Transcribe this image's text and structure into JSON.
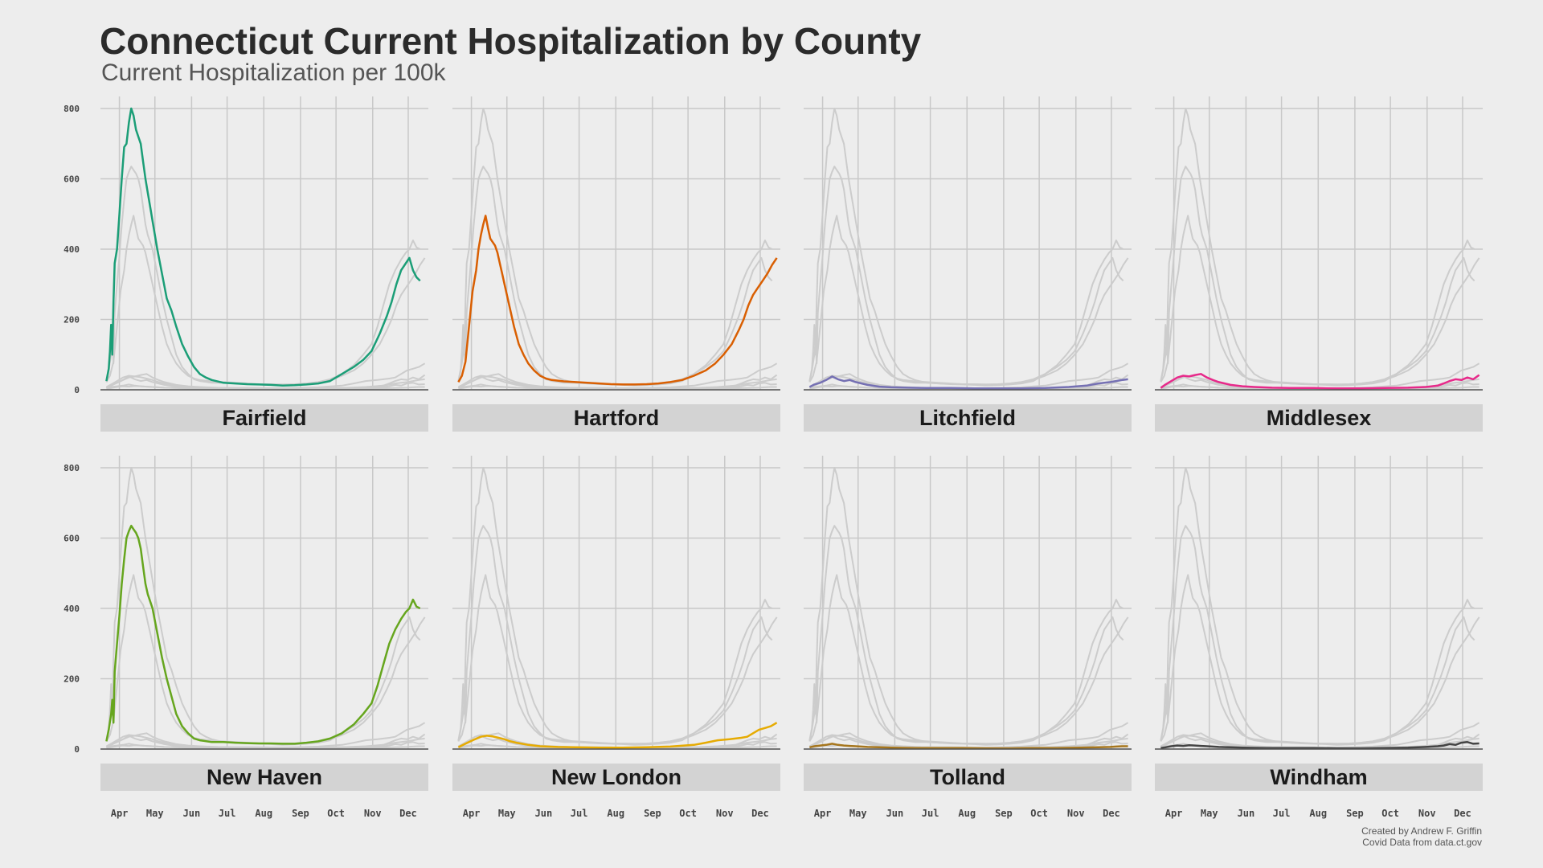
{
  "chart_data": {
    "type": "line",
    "title": "Connecticut Current Hospitalization by County",
    "subtitle": "Current Hospitalization per 100k",
    "caption": [
      "Created by Andrew F. Griffin",
      "Covid Data from data.ct.gov"
    ],
    "xlabel": "",
    "ylabel": "",
    "x_unit": "day of year 2020",
    "xlim": [
      76,
      353
    ],
    "ylim": [
      0,
      800
    ],
    "yticks": [
      0,
      200,
      400,
      600,
      800
    ],
    "ytick_labels": [
      "0",
      "200",
      "400",
      "600",
      "800"
    ],
    "xticks": [
      92,
      122,
      153,
      183,
      214,
      245,
      275,
      306,
      336
    ],
    "xtick_labels": [
      "Apr",
      "May",
      "Jun",
      "Jul",
      "Aug",
      "Sep",
      "Oct",
      "Nov",
      "Dec"
    ],
    "grid": true,
    "background_series_color": "#cccccc",
    "baseline_color": "#555555",
    "series": [
      {
        "name": "Fairfield",
        "color": "#1b9e77",
        "x": [
          81,
          83,
          84,
          85,
          86,
          87,
          88,
          90,
          92,
          94,
          96,
          98,
          100,
          102,
          104,
          106,
          108,
          110,
          112,
          114,
          116,
          118,
          120,
          124,
          128,
          132,
          136,
          140,
          145,
          150,
          155,
          160,
          165,
          170,
          180,
          190,
          200,
          210,
          220,
          230,
          240,
          250,
          260,
          270,
          280,
          290,
          298,
          305,
          312,
          318,
          322,
          326,
          330,
          334,
          337,
          340,
          343,
          346
        ],
        "values": [
          25,
          60,
          110,
          185,
          100,
          250,
          360,
          400,
          500,
          600,
          690,
          700,
          760,
          800,
          780,
          740,
          720,
          700,
          650,
          600,
          560,
          520,
          480,
          400,
          330,
          260,
          225,
          180,
          130,
          95,
          65,
          45,
          35,
          28,
          20,
          18,
          16,
          15,
          14,
          12,
          13,
          15,
          18,
          25,
          45,
          65,
          85,
          110,
          160,
          210,
          250,
          300,
          340,
          360,
          375,
          340,
          320,
          310
        ]
      },
      {
        "name": "Hartford",
        "color": "#d95f02",
        "x": [
          81,
          84,
          87,
          90,
          93,
          96,
          98,
          100,
          102,
          104,
          106,
          108,
          110,
          112,
          114,
          116,
          118,
          120,
          124,
          128,
          132,
          136,
          140,
          145,
          150,
          155,
          160,
          170,
          180,
          190,
          200,
          210,
          220,
          230,
          240,
          250,
          260,
          270,
          280,
          290,
          298,
          305,
          312,
          318,
          322,
          326,
          330,
          334,
          338,
          342,
          346,
          350
        ],
        "values": [
          22,
          40,
          80,
          180,
          280,
          340,
          400,
          440,
          470,
          495,
          460,
          430,
          420,
          410,
          390,
          360,
          330,
          300,
          240,
          180,
          130,
          100,
          75,
          55,
          40,
          32,
          28,
          24,
          22,
          20,
          18,
          16,
          15,
          15,
          16,
          18,
          22,
          28,
          40,
          55,
          75,
          100,
          130,
          170,
          200,
          240,
          270,
          290,
          310,
          330,
          355,
          375
        ]
      },
      {
        "name": "Litchfield",
        "color": "#7570b3",
        "x": [
          81,
          85,
          90,
          95,
          100,
          105,
          110,
          115,
          120,
          130,
          140,
          150,
          165,
          180,
          200,
          220,
          240,
          260,
          280,
          300,
          315,
          325,
          335,
          340,
          345,
          350
        ],
        "values": [
          8,
          15,
          20,
          28,
          38,
          30,
          25,
          28,
          22,
          14,
          9,
          7,
          6,
          5,
          5,
          4,
          4,
          4,
          5,
          8,
          12,
          18,
          22,
          25,
          28,
          30
        ]
      },
      {
        "name": "Middlesex",
        "color": "#e7298a",
        "x": [
          81,
          85,
          90,
          95,
          100,
          105,
          110,
          115,
          120,
          125,
          130,
          135,
          140,
          150,
          160,
          175,
          190,
          210,
          230,
          250,
          270,
          290,
          305,
          315,
          320,
          325,
          330,
          335,
          340,
          345,
          350
        ],
        "values": [
          5,
          15,
          25,
          35,
          40,
          38,
          42,
          45,
          35,
          28,
          22,
          18,
          14,
          10,
          8,
          6,
          5,
          5,
          4,
          4,
          5,
          6,
          8,
          12,
          18,
          25,
          30,
          28,
          35,
          30,
          42
        ]
      },
      {
        "name": "New Haven",
        "color": "#66a61e",
        "x": [
          81,
          83,
          85,
          86,
          87,
          88,
          90,
          92,
          94,
          96,
          98,
          100,
          102,
          104,
          106,
          108,
          110,
          112,
          114,
          116,
          118,
          120,
          124,
          128,
          132,
          136,
          140,
          145,
          150,
          155,
          160,
          170,
          180,
          190,
          200,
          210,
          220,
          230,
          240,
          250,
          260,
          270,
          280,
          290,
          298,
          305,
          310,
          315,
          320,
          325,
          330,
          334,
          337,
          340,
          343,
          346
        ],
        "values": [
          22,
          55,
          100,
          140,
          75,
          220,
          300,
          380,
          470,
          540,
          600,
          620,
          635,
          625,
          615,
          600,
          570,
          520,
          470,
          440,
          420,
          400,
          330,
          260,
          200,
          150,
          100,
          65,
          45,
          30,
          25,
          20,
          20,
          18,
          17,
          16,
          16,
          15,
          15,
          18,
          22,
          30,
          45,
          70,
          100,
          130,
          180,
          240,
          300,
          340,
          370,
          390,
          400,
          425,
          405,
          400
        ]
      },
      {
        "name": "New London",
        "color": "#e6ab02",
        "x": [
          81,
          85,
          90,
          95,
          100,
          105,
          110,
          115,
          120,
          125,
          130,
          140,
          150,
          165,
          180,
          200,
          220,
          240,
          260,
          280,
          290,
          300,
          310,
          320,
          325,
          330,
          335,
          340,
          345,
          350
        ],
        "values": [
          5,
          12,
          20,
          28,
          35,
          38,
          36,
          32,
          28,
          22,
          18,
          12,
          8,
          6,
          5,
          4,
          4,
          5,
          7,
          12,
          18,
          25,
          28,
          32,
          35,
          45,
          55,
          60,
          65,
          75
        ]
      },
      {
        "name": "Tolland",
        "color": "#a6761d",
        "x": [
          81,
          85,
          90,
          95,
          100,
          105,
          110,
          115,
          120,
          130,
          140,
          150,
          170,
          190,
          210,
          230,
          250,
          270,
          290,
          310,
          325,
          335,
          340,
          345,
          350
        ],
        "values": [
          5,
          8,
          10,
          12,
          15,
          12,
          10,
          9,
          8,
          6,
          5,
          4,
          3,
          3,
          3,
          2,
          2,
          3,
          3,
          4,
          5,
          6,
          7,
          8,
          8
        ]
      },
      {
        "name": "Windham",
        "color": "#444444",
        "x": [
          81,
          85,
          90,
          95,
          100,
          105,
          110,
          115,
          120,
          130,
          140,
          150,
          170,
          190,
          210,
          230,
          250,
          270,
          290,
          305,
          315,
          320,
          325,
          330,
          335,
          340,
          345,
          350
        ],
        "values": [
          3,
          5,
          8,
          10,
          9,
          11,
          10,
          9,
          8,
          6,
          5,
          4,
          3,
          3,
          3,
          2,
          2,
          3,
          4,
          6,
          8,
          10,
          14,
          12,
          18,
          20,
          15,
          16
        ]
      }
    ]
  }
}
